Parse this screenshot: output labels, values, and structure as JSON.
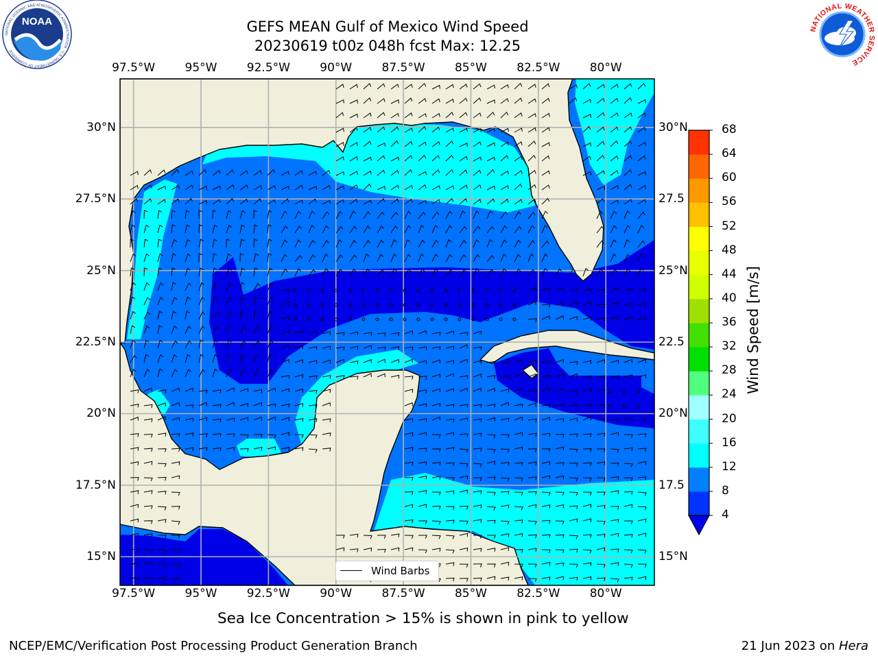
{
  "title": {
    "line1": "GEFS MEAN Gulf of Mexico Wind Speed",
    "line2": "20230619 t00z 048h fcst   Max: 12.25"
  },
  "axes": {
    "lon_labels": [
      "97.5°W",
      "95°W",
      "92.5°W",
      "90°W",
      "87.5°W",
      "85°W",
      "82.5°W",
      "80°W"
    ],
    "lon_values": [
      -97.5,
      -95,
      -92.5,
      -90,
      -87.5,
      -85,
      -82.5,
      -80
    ],
    "lat_labels_left": [
      "30°N",
      "27.5°N",
      "25°N",
      "22.5°N",
      "20°N",
      "17.5°N",
      "15°N"
    ],
    "lat_labels_right": [
      "30°N",
      "27.5",
      "25°N",
      "22.5",
      "20°N",
      "17.5",
      "15°N"
    ],
    "lat_values": [
      30,
      27.5,
      25,
      22.5,
      20,
      17.5,
      15
    ],
    "lon_range": [
      -98,
      -78.2
    ],
    "lat_range": [
      14,
      31.7
    ]
  },
  "legend": {
    "label": "Wind Barbs"
  },
  "colorbar": {
    "title": "Wind Speed [m/s]",
    "levels": [
      4,
      8,
      12,
      16,
      20,
      24,
      28,
      32,
      36,
      40,
      44,
      48,
      52,
      56,
      60,
      64,
      68
    ],
    "colors": [
      "#0033ff",
      "#0080ff",
      "#00ffff",
      "#40ffff",
      "#a0ffff",
      "#50ff80",
      "#00e000",
      "#40e000",
      "#a0e000",
      "#d0ff00",
      "#e8ff00",
      "#ffff00",
      "#ffc000",
      "#ff9900",
      "#ff6600",
      "#ff3300",
      "#ff0000"
    ],
    "extend_color": "#0000ee"
  },
  "colors": {
    "land": "#efefdc",
    "band_lt4": "#0000e6",
    "band_4_8": "#0073ff",
    "band_8_12": "#00ffff",
    "grid": "#b0b0b0"
  },
  "logos": {
    "noaa": {
      "text": "NOAA",
      "ring": "NATIONAL OCEANIC AND ATMOSPHERIC ADMINISTRATION · U.S. DEPARTMENT OF COMMERCE"
    },
    "nws": {
      "ring": "NATIONAL WEATHER SERVICE"
    }
  },
  "subtitle": "Sea Ice Concentration > 15% is shown in pink to yellow",
  "footer": {
    "left": "NCEP/EMC/Verification Post Processing Product Generation Branch",
    "right_prefix": "21 Jun 2023 on ",
    "right_host": "Hera"
  }
}
